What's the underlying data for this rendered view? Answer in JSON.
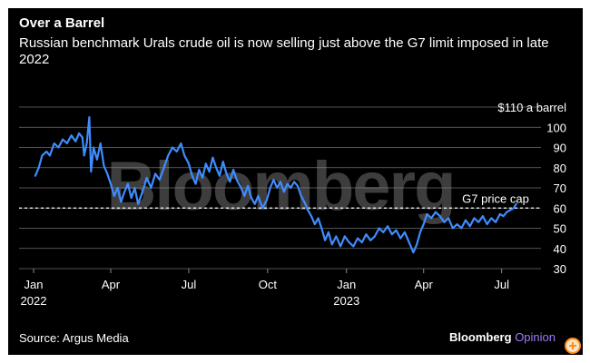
{
  "header": {
    "title": "Over a Barrel",
    "subtitle": "Russian benchmark Urals crude oil is now selling just above the G7 limit imposed in late 2022"
  },
  "footer": {
    "source": "Source: Argus Media",
    "brand_main": "Bloomberg",
    "brand_sub": "Opinion"
  },
  "watermark": "Bloomberg",
  "colors": {
    "line": "#3f8cff",
    "grid": "#8a8a8a",
    "text": "#ffffff",
    "background": "#000000"
  },
  "chart_data": {
    "type": "line",
    "title": "Over a Barrel",
    "subtitle": "Russian benchmark Urals crude oil is now selling just above the G7 limit imposed in late 2022",
    "ylim": [
      30,
      110
    ],
    "yticks": [
      30,
      40,
      50,
      60,
      70,
      80,
      90,
      100,
      110
    ],
    "ytick_labels": [
      "30",
      "40",
      "50",
      "60",
      "70",
      "80",
      "90",
      "100",
      "$110 a barrel"
    ],
    "xlim": [
      "2022-01-01",
      "2023-07-31"
    ],
    "xticks": [
      {
        "date": "2022-01-01",
        "label": "Jan",
        "year": "2022"
      },
      {
        "date": "2022-04-01",
        "label": "Apr",
        "year": ""
      },
      {
        "date": "2022-07-01",
        "label": "Jul",
        "year": ""
      },
      {
        "date": "2022-10-01",
        "label": "Oct",
        "year": ""
      },
      {
        "date": "2023-01-01",
        "label": "Jan",
        "year": "2023"
      },
      {
        "date": "2023-04-01",
        "label": "Apr",
        "year": ""
      },
      {
        "date": "2023-07-01",
        "label": "Jul",
        "year": ""
      }
    ],
    "grid": true,
    "reference_lines": [
      {
        "y": 60,
        "label": "G7 price cap",
        "style": "dashed"
      }
    ],
    "series": [
      {
        "name": "",
        "values": [
          [
            "2022-01-03",
            76
          ],
          [
            "2022-01-07",
            80
          ],
          [
            "2022-01-11",
            86
          ],
          [
            "2022-01-16",
            88
          ],
          [
            "2022-01-20",
            86
          ],
          [
            "2022-01-25",
            92
          ],
          [
            "2022-01-30",
            90
          ],
          [
            "2022-02-04",
            94
          ],
          [
            "2022-02-09",
            92
          ],
          [
            "2022-02-14",
            96
          ],
          [
            "2022-02-19",
            93
          ],
          [
            "2022-02-23",
            97
          ],
          [
            "2022-02-27",
            95
          ],
          [
            "2022-03-01",
            86
          ],
          [
            "2022-03-04",
            92
          ],
          [
            "2022-03-07",
            105
          ],
          [
            "2022-03-09",
            78
          ],
          [
            "2022-03-12",
            90
          ],
          [
            "2022-03-16",
            84
          ],
          [
            "2022-03-20",
            92
          ],
          [
            "2022-03-24",
            81
          ],
          [
            "2022-03-28",
            77
          ],
          [
            "2022-04-01",
            72
          ],
          [
            "2022-04-05",
            66
          ],
          [
            "2022-04-09",
            70
          ],
          [
            "2022-04-13",
            63
          ],
          [
            "2022-04-17",
            68
          ],
          [
            "2022-04-21",
            72
          ],
          [
            "2022-04-25",
            65
          ],
          [
            "2022-04-29",
            70
          ],
          [
            "2022-05-03",
            62
          ],
          [
            "2022-05-08",
            68
          ],
          [
            "2022-05-13",
            75
          ],
          [
            "2022-05-18",
            70
          ],
          [
            "2022-05-23",
            77
          ],
          [
            "2022-05-28",
            74
          ],
          [
            "2022-06-02",
            80
          ],
          [
            "2022-06-07",
            86
          ],
          [
            "2022-06-12",
            90
          ],
          [
            "2022-06-17",
            88
          ],
          [
            "2022-06-22",
            92
          ],
          [
            "2022-06-26",
            86
          ],
          [
            "2022-07-01",
            82
          ],
          [
            "2022-07-05",
            76
          ],
          [
            "2022-07-09",
            72
          ],
          [
            "2022-07-13",
            79
          ],
          [
            "2022-07-17",
            75
          ],
          [
            "2022-07-21",
            82
          ],
          [
            "2022-07-25",
            78
          ],
          [
            "2022-07-29",
            85
          ],
          [
            "2022-08-02",
            80
          ],
          [
            "2022-08-06",
            76
          ],
          [
            "2022-08-10",
            83
          ],
          [
            "2022-08-14",
            77
          ],
          [
            "2022-08-18",
            73
          ],
          [
            "2022-08-22",
            79
          ],
          [
            "2022-08-26",
            74
          ],
          [
            "2022-08-31",
            70
          ],
          [
            "2022-09-04",
            66
          ],
          [
            "2022-09-08",
            71
          ],
          [
            "2022-09-12",
            65
          ],
          [
            "2022-09-16",
            62
          ],
          [
            "2022-09-20",
            66
          ],
          [
            "2022-09-25",
            60
          ],
          [
            "2022-09-30",
            64
          ],
          [
            "2022-10-04",
            70
          ],
          [
            "2022-10-08",
            74
          ],
          [
            "2022-10-12",
            70
          ],
          [
            "2022-10-16",
            73
          ],
          [
            "2022-10-20",
            68
          ],
          [
            "2022-10-24",
            72
          ],
          [
            "2022-10-28",
            70
          ],
          [
            "2022-11-01",
            73
          ],
          [
            "2022-11-05",
            71
          ],
          [
            "2022-11-09",
            66
          ],
          [
            "2022-11-13",
            63
          ],
          [
            "2022-11-17",
            59
          ],
          [
            "2022-11-21",
            56
          ],
          [
            "2022-11-25",
            52
          ],
          [
            "2022-11-29",
            55
          ],
          [
            "2022-12-03",
            50
          ],
          [
            "2022-12-07",
            44
          ],
          [
            "2022-12-11",
            48
          ],
          [
            "2022-12-15",
            42
          ],
          [
            "2022-12-20",
            46
          ],
          [
            "2022-12-25",
            41
          ],
          [
            "2022-12-30",
            46
          ],
          [
            "2023-01-04",
            43
          ],
          [
            "2023-01-09",
            41
          ],
          [
            "2023-01-14",
            45
          ],
          [
            "2023-01-19",
            43
          ],
          [
            "2023-01-24",
            47
          ],
          [
            "2023-01-29",
            44
          ],
          [
            "2023-02-03",
            46
          ],
          [
            "2023-02-08",
            50
          ],
          [
            "2023-02-13",
            48
          ],
          [
            "2023-02-18",
            51
          ],
          [
            "2023-02-23",
            47
          ],
          [
            "2023-02-28",
            49
          ],
          [
            "2023-03-05",
            45
          ],
          [
            "2023-03-10",
            48
          ],
          [
            "2023-03-15",
            43
          ],
          [
            "2023-03-20",
            38
          ],
          [
            "2023-03-24",
            42
          ],
          [
            "2023-03-28",
            48
          ],
          [
            "2023-04-01",
            52
          ],
          [
            "2023-04-05",
            57
          ],
          [
            "2023-04-10",
            55
          ],
          [
            "2023-04-15",
            58
          ],
          [
            "2023-04-20",
            56
          ],
          [
            "2023-04-25",
            53
          ],
          [
            "2023-04-30",
            55
          ],
          [
            "2023-05-05",
            50
          ],
          [
            "2023-05-10",
            52
          ],
          [
            "2023-05-15",
            50
          ],
          [
            "2023-05-20",
            54
          ],
          [
            "2023-05-25",
            51
          ],
          [
            "2023-05-30",
            55
          ],
          [
            "2023-06-04",
            53
          ],
          [
            "2023-06-09",
            56
          ],
          [
            "2023-06-14",
            52
          ],
          [
            "2023-06-19",
            55
          ],
          [
            "2023-06-24",
            53
          ],
          [
            "2023-06-29",
            57
          ],
          [
            "2023-07-03",
            56
          ],
          [
            "2023-07-07",
            58
          ],
          [
            "2023-07-11",
            59
          ],
          [
            "2023-07-15",
            60
          ],
          [
            "2023-07-18",
            62
          ]
        ]
      }
    ]
  }
}
